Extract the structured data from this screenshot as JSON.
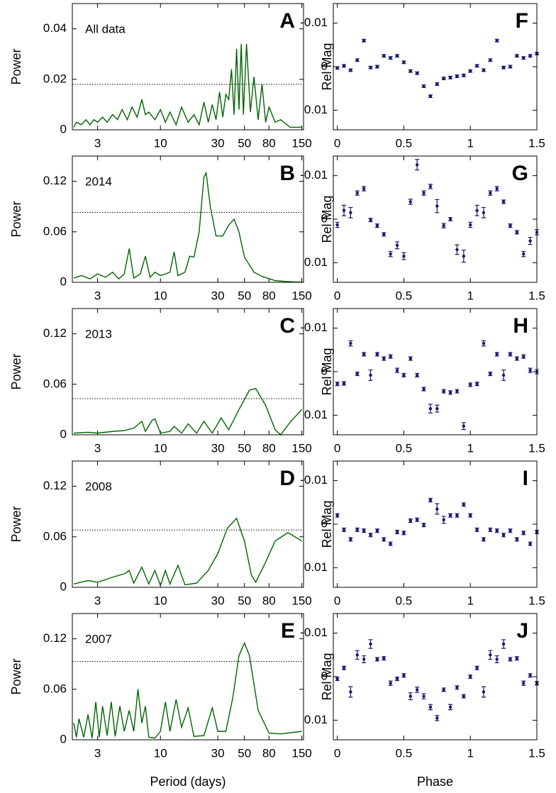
{
  "chart_data": [
    {
      "type": "line",
      "panel": "A",
      "label": "All data",
      "ylabel": "Power",
      "color": "#006400",
      "xscale": "log",
      "threshold": 0.018,
      "xlim": [
        1.85,
        155
      ],
      "ylim": [
        0,
        0.05
      ],
      "xticks": [
        3,
        10,
        30,
        50,
        80,
        150
      ],
      "yticks": [
        0,
        0.02,
        0.04
      ],
      "x": [
        1.9,
        2.0,
        2.2,
        2.4,
        2.6,
        2.8,
        3.0,
        3.3,
        3.6,
        4.0,
        4.4,
        4.8,
        5.3,
        5.8,
        6.4,
        7.0,
        7.5,
        8.0,
        9,
        10,
        11,
        12,
        13.5,
        15,
        17,
        19,
        21,
        23,
        25,
        27,
        29,
        31,
        33,
        35,
        37,
        39,
        41,
        43,
        45,
        47,
        49,
        52,
        56,
        60,
        65,
        70,
        75,
        80,
        90,
        100,
        120,
        150
      ],
      "values": [
        0.001,
        0.003,
        0.002,
        0.004,
        0.002,
        0.004,
        0.003,
        0.005,
        0.003,
        0.006,
        0.004,
        0.008,
        0.004,
        0.009,
        0.005,
        0.012,
        0.006,
        0.007,
        0.004,
        0.008,
        0.003,
        0.007,
        0.002,
        0.009,
        0.003,
        0.006,
        0.002,
        0.011,
        0.003,
        0.01,
        0.004,
        0.015,
        0.005,
        0.014,
        0.012,
        0.024,
        0.006,
        0.032,
        0.008,
        0.034,
        0.006,
        0.034,
        0.007,
        0.021,
        0.004,
        0.018,
        0.003,
        0.009,
        0.003,
        0.004,
        0.001,
        0.001
      ]
    },
    {
      "type": "line",
      "panel": "B",
      "label": "2014",
      "ylabel": "Power",
      "color": "#006400",
      "xscale": "log",
      "threshold": 0.083,
      "xlim": [
        1.85,
        155
      ],
      "ylim": [
        0,
        0.15
      ],
      "xticks": [
        3,
        10,
        30,
        50,
        80,
        150
      ],
      "yticks": [
        0,
        0.06,
        0.12
      ],
      "x": [
        1.9,
        2.2,
        2.6,
        3.0,
        3.5,
        4.0,
        4.5,
        5.0,
        5.5,
        6.0,
        6.8,
        7.5,
        8.2,
        9,
        10,
        11,
        12,
        13,
        14,
        16,
        17.5,
        19,
        21,
        23,
        24,
        26,
        29,
        33,
        37,
        41,
        45,
        50,
        60,
        70,
        90,
        110,
        150
      ],
      "values": [
        0.005,
        0.008,
        0.004,
        0.01,
        0.006,
        0.012,
        0.004,
        0.01,
        0.04,
        0.005,
        0.01,
        0.031,
        0.006,
        0.012,
        0.008,
        0.01,
        0.012,
        0.036,
        0.008,
        0.012,
        0.031,
        0.03,
        0.06,
        0.125,
        0.13,
        0.09,
        0.055,
        0.055,
        0.068,
        0.075,
        0.06,
        0.03,
        0.012,
        0.007,
        0.002,
        0.001,
        0.0
      ]
    },
    {
      "type": "line",
      "panel": "C",
      "label": "2013",
      "ylabel": "Power",
      "color": "#006400",
      "xscale": "log",
      "threshold": 0.043,
      "xlim": [
        1.85,
        155
      ],
      "ylim": [
        0,
        0.15
      ],
      "xticks": [
        3,
        10,
        30,
        50,
        80,
        150
      ],
      "yticks": [
        0,
        0.06,
        0.12
      ],
      "x": [
        1.9,
        2.5,
        3,
        4,
        5,
        6,
        7,
        7.5,
        8.5,
        9,
        10,
        12,
        13,
        15,
        17,
        20,
        23,
        27,
        32,
        37,
        45,
        55,
        62,
        75,
        90,
        100,
        120,
        150
      ],
      "values": [
        0.002,
        0.003,
        0.002,
        0.004,
        0.005,
        0.008,
        0.016,
        0.004,
        0.017,
        0.019,
        0.002,
        0.004,
        0.01,
        0.002,
        0.013,
        0.002,
        0.016,
        0.002,
        0.02,
        0.006,
        0.03,
        0.053,
        0.055,
        0.035,
        0.006,
        0.0,
        0.015,
        0.03
      ]
    },
    {
      "type": "line",
      "panel": "D",
      "label": "2008",
      "ylabel": "Power",
      "color": "#006400",
      "xscale": "log",
      "threshold": 0.068,
      "xlim": [
        1.85,
        155
      ],
      "ylim": [
        0,
        0.15
      ],
      "xticks": [
        3,
        10,
        30,
        50,
        80,
        150
      ],
      "yticks": [
        0,
        0.06,
        0.12
      ],
      "x": [
        1.9,
        2.5,
        3,
        4,
        5,
        5.5,
        6,
        7,
        8,
        9,
        10,
        11,
        12,
        14,
        16,
        20,
        25,
        30,
        36,
        43,
        50,
        57,
        62,
        75,
        90,
        115,
        150
      ],
      "values": [
        0.004,
        0.008,
        0.006,
        0.012,
        0.016,
        0.02,
        0.005,
        0.024,
        0.004,
        0.02,
        0.002,
        0.02,
        0.004,
        0.026,
        0.003,
        0.005,
        0.02,
        0.04,
        0.07,
        0.082,
        0.055,
        0.015,
        0.006,
        0.03,
        0.055,
        0.065,
        0.055
      ]
    },
    {
      "type": "line",
      "panel": "E",
      "label": "2007",
      "ylabel": "Power",
      "xlabel": "Period (days)",
      "color": "#006400",
      "xscale": "log",
      "threshold": 0.093,
      "xlim": [
        1.85,
        155
      ],
      "ylim": [
        0,
        0.15
      ],
      "xticks": [
        3,
        10,
        30,
        50,
        80,
        150
      ],
      "yticks": [
        0,
        0.06,
        0.12
      ],
      "x": [
        1.9,
        2.0,
        2.1,
        2.3,
        2.5,
        2.7,
        2.9,
        3.1,
        3.3,
        3.6,
        3.9,
        4.2,
        4.6,
        5.0,
        5.5,
        6.0,
        6.5,
        7,
        7.5,
        8,
        9,
        10,
        11,
        12,
        13.5,
        15,
        17,
        19,
        23,
        27,
        30,
        35,
        40,
        45,
        50,
        55,
        65,
        80,
        100,
        150
      ],
      "values": [
        0.02,
        0.003,
        0.025,
        0.003,
        0.03,
        0.002,
        0.045,
        0.003,
        0.04,
        0.005,
        0.045,
        0.004,
        0.04,
        0.01,
        0.035,
        0.01,
        0.06,
        0.02,
        0.04,
        0.003,
        0.002,
        0.01,
        0.045,
        0.01,
        0.048,
        0.015,
        0.038,
        0.004,
        0.005,
        0.038,
        0.01,
        0.01,
        0.05,
        0.1,
        0.115,
        0.1,
        0.035,
        0.008,
        0.007,
        0.01
      ]
    },
    {
      "type": "errorbar",
      "panel": "F",
      "ylabel": "Rel Mag",
      "color": "#191970",
      "xlim": [
        -0.03,
        1.5
      ],
      "ylim": [
        0.0145,
        -0.0145
      ],
      "xticks": [
        0,
        0.5,
        1,
        1.5
      ],
      "yticks": [
        -0.01,
        0,
        0.01
      ],
      "x": [
        0,
        0.05,
        0.1,
        0.15,
        0.2,
        0.25,
        0.3,
        0.35,
        0.4,
        0.45,
        0.5,
        0.55,
        0.6,
        0.65,
        0.7,
        0.75,
        0.8,
        0.85,
        0.9,
        0.95,
        1,
        1.05,
        1.1,
        1.15,
        1.2,
        1.25,
        1.3,
        1.35,
        1.4,
        1.45,
        1.5
      ],
      "values": [
        0.0003,
        -0.0002,
        0.0008,
        -0.0015,
        -0.006,
        0.0002,
        0.0,
        -0.0025,
        -0.002,
        -0.0025,
        -0.001,
        0.001,
        0.0015,
        0.0045,
        0.0068,
        0.004,
        0.0027,
        0.0025,
        0.0022,
        0.002,
        0.001,
        -0.0002,
        0.0008,
        -0.0015,
        -0.006,
        0.0002,
        0.0,
        -0.0025,
        -0.002,
        -0.0025,
        -0.003
      ],
      "errors": [
        0.0003,
        0.0003,
        0.0003,
        0.0003,
        0.0003,
        0.0003,
        0.0003,
        0.0003,
        0.0003,
        0.0003,
        0.0003,
        0.0003,
        0.0003,
        0.0003,
        0.0003,
        0.0003,
        0.0003,
        0.0003,
        0.0003,
        0.0003,
        0.0003,
        0.0003,
        0.0003,
        0.0003,
        0.0003,
        0.0003,
        0.0003,
        0.0003,
        0.0003,
        0.0003,
        0.0003
      ]
    },
    {
      "type": "errorbar",
      "panel": "G",
      "ylabel": "Rel Mag",
      "color": "#191970",
      "xlim": [
        -0.03,
        1.5
      ],
      "ylim": [
        0.0145,
        -0.0145
      ],
      "xticks": [
        0,
        0.5,
        1,
        1.5
      ],
      "yticks": [
        -0.01,
        0,
        0.01
      ],
      "x": [
        0,
        0.05,
        0.1,
        0.15,
        0.2,
        0.25,
        0.3,
        0.35,
        0.4,
        0.45,
        0.5,
        0.55,
        0.6,
        0.65,
        0.7,
        0.75,
        0.8,
        0.85,
        0.9,
        0.95,
        1,
        1.05,
        1.1,
        1.15,
        1.2,
        1.25,
        1.3,
        1.35,
        1.4,
        1.45,
        1.5
      ],
      "values": [
        0.0013,
        -0.002,
        -0.0015,
        -0.006,
        -0.007,
        0.0002,
        0.0015,
        0.0035,
        0.008,
        0.006,
        0.0085,
        -0.004,
        -0.0125,
        -0.006,
        -0.0075,
        -0.003,
        0.0015,
        0.0,
        0.007,
        0.0085,
        0.0013,
        -0.002,
        -0.0015,
        -0.006,
        -0.007,
        -0.004,
        0.0015,
        0.003,
        0.008,
        0.005,
        0.003
      ],
      "errors": [
        0.0006,
        0.0012,
        0.0012,
        0.0005,
        0.0005,
        0.0004,
        0.0004,
        0.0004,
        0.0006,
        0.0008,
        0.0008,
        0.0006,
        0.0012,
        0.0005,
        0.0005,
        0.0015,
        0.0005,
        0.0004,
        0.0011,
        0.0014,
        0.0006,
        0.0012,
        0.0012,
        0.0005,
        0.0005,
        0.0004,
        0.0004,
        0.0004,
        0.0006,
        0.0008,
        0.0006
      ]
    },
    {
      "type": "errorbar",
      "panel": "H",
      "ylabel": "Rel Mag",
      "color": "#191970",
      "xlim": [
        -0.03,
        1.5
      ],
      "ylim": [
        0.0145,
        -0.0145
      ],
      "xticks": [
        0,
        0.5,
        1,
        1.5
      ],
      "yticks": [
        -0.01,
        0,
        0.01
      ],
      "x": [
        0,
        0.05,
        0.1,
        0.15,
        0.2,
        0.25,
        0.3,
        0.35,
        0.4,
        0.45,
        0.5,
        0.55,
        0.6,
        0.65,
        0.7,
        0.75,
        0.8,
        0.85,
        0.9,
        0.95,
        1,
        1.05,
        1.1,
        1.15,
        1.2,
        1.25,
        1.3,
        1.35,
        1.4,
        1.45,
        1.5
      ],
      "values": [
        0.0028,
        0.0027,
        -0.0065,
        0.0005,
        -0.004,
        0.0008,
        -0.004,
        -0.003,
        -0.0035,
        -0.0003,
        0.0008,
        -0.003,
        0.0008,
        0.004,
        0.0085,
        0.0085,
        0.0045,
        0.0048,
        0.0045,
        0.0125,
        0.003,
        0.0028,
        -0.0065,
        0.0005,
        -0.004,
        0.0008,
        -0.004,
        -0.003,
        -0.0035,
        -0.0003,
        0.0
      ],
      "errors": [
        0.0004,
        0.0004,
        0.0006,
        0.0004,
        0.0004,
        0.0012,
        0.0004,
        0.0004,
        0.0004,
        0.0005,
        0.0004,
        0.0004,
        0.0004,
        0.0004,
        0.001,
        0.0008,
        0.0004,
        0.0004,
        0.0004,
        0.0008,
        0.0004,
        0.0004,
        0.0006,
        0.0004,
        0.0004,
        0.0012,
        0.0004,
        0.0004,
        0.0004,
        0.0005,
        0.0005
      ]
    },
    {
      "type": "errorbar",
      "panel": "I",
      "ylabel": "Rel Mag",
      "color": "#191970",
      "xlim": [
        -0.03,
        1.5
      ],
      "ylim": [
        0.0145,
        -0.0145
      ],
      "xticks": [
        0,
        0.5,
        1,
        1.5
      ],
      "yticks": [
        -0.01,
        0,
        0.01
      ],
      "x": [
        0,
        0.05,
        0.1,
        0.15,
        0.2,
        0.25,
        0.3,
        0.35,
        0.4,
        0.45,
        0.5,
        0.55,
        0.6,
        0.65,
        0.7,
        0.75,
        0.8,
        0.85,
        0.9,
        0.95,
        1,
        1.05,
        1.1,
        1.15,
        1.2,
        1.25,
        1.3,
        1.35,
        1.4,
        1.45,
        1.5
      ],
      "values": [
        -0.002,
        0.0013,
        0.0035,
        0.0013,
        0.0015,
        0.0025,
        0.0015,
        0.0035,
        0.0045,
        0.0018,
        0.002,
        -0.0008,
        -0.001,
        0.0002,
        -0.0055,
        -0.0035,
        -0.001,
        -0.002,
        -0.002,
        -0.0045,
        -0.002,
        0.0013,
        0.0035,
        0.0013,
        0.0015,
        0.0025,
        0.0015,
        0.0035,
        0.002,
        0.0045,
        0.0018
      ],
      "errors": [
        0.0004,
        0.0004,
        0.0004,
        0.0004,
        0.0004,
        0.0004,
        0.0004,
        0.0004,
        0.0004,
        0.0004,
        0.0004,
        0.0004,
        0.0004,
        0.0004,
        0.0004,
        0.0012,
        0.0008,
        0.0004,
        0.0004,
        0.0004,
        0.0004,
        0.0004,
        0.0004,
        0.0004,
        0.0004,
        0.0004,
        0.0004,
        0.0004,
        0.0004,
        0.0004,
        0.0004
      ]
    },
    {
      "type": "errorbar",
      "panel": "J",
      "ylabel": "Rel Mag",
      "xlabel": "Phase",
      "color": "#191970",
      "xlim": [
        -0.03,
        1.5
      ],
      "ylim": [
        0.0145,
        -0.0145
      ],
      "xticks": [
        0,
        0.5,
        1,
        1.5
      ],
      "yticks": [
        -0.01,
        0,
        0.01
      ],
      "x": [
        0,
        0.05,
        0.1,
        0.15,
        0.2,
        0.25,
        0.3,
        0.35,
        0.4,
        0.45,
        0.5,
        0.55,
        0.6,
        0.65,
        0.7,
        0.75,
        0.8,
        0.85,
        0.9,
        0.95,
        1,
        1.05,
        1.1,
        1.15,
        1.2,
        1.25,
        1.3,
        1.35,
        1.4,
        1.45,
        1.5
      ],
      "values": [
        0.0005,
        -0.002,
        0.0035,
        -0.005,
        -0.004,
        -0.0075,
        -0.004,
        -0.0042,
        0.0015,
        0.0005,
        -0.0003,
        0.0045,
        0.003,
        0.0045,
        0.007,
        0.0095,
        0.003,
        0.007,
        0.0025,
        0.0045,
        0.0,
        -0.002,
        0.0035,
        -0.005,
        -0.004,
        -0.0075,
        -0.004,
        -0.0042,
        0.0015,
        -0.0003,
        0.0015
      ],
      "errors": [
        0.0004,
        0.0004,
        0.0012,
        0.001,
        0.0008,
        0.001,
        0.0004,
        0.0004,
        0.0005,
        0.0004,
        0.0004,
        0.0008,
        0.0006,
        0.0006,
        0.0006,
        0.0006,
        0.0004,
        0.0006,
        0.0004,
        0.0004,
        0.0004,
        0.0004,
        0.0012,
        0.001,
        0.0008,
        0.001,
        0.0004,
        0.0004,
        0.0005,
        0.0004,
        0.0004
      ]
    }
  ]
}
